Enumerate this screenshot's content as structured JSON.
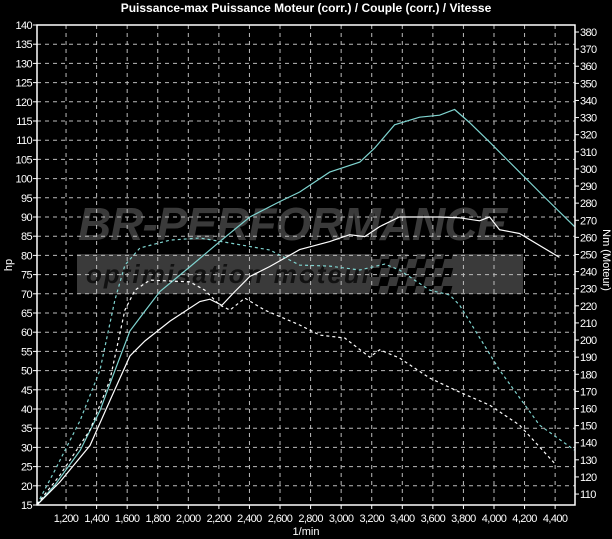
{
  "chart_data": {
    "type": "line",
    "title": "Puissance-max Puissance Moteur (corr.) / Couple (corr.) / Vitesse",
    "xlabel": "1/min",
    "ylabel": "hp",
    "ylabel_right": "Nm (Moteur)",
    "xlim": [
      1010,
      4530
    ],
    "ylim": [
      15,
      140
    ],
    "ylim_right": [
      103.6,
      384.1
    ],
    "grid": true,
    "x_ticks": [
      "1,200",
      "1,400",
      "1,600",
      "1,800",
      "2,000",
      "2,200",
      "2,400",
      "2,600",
      "2,800",
      "3,000",
      "3,200",
      "3,400",
      "3,600",
      "3,800",
      "4,000",
      "4,200",
      "4,400"
    ],
    "x_tick_values": [
      1200,
      1400,
      1600,
      1800,
      2000,
      2200,
      2400,
      2600,
      2800,
      3000,
      3200,
      3400,
      3600,
      3800,
      4000,
      4200,
      4400
    ],
    "y_ticks": [
      15,
      20,
      25,
      30,
      35,
      40,
      45,
      50,
      55,
      60,
      65,
      70,
      75,
      80,
      85,
      90,
      95,
      100,
      105,
      110,
      115,
      120,
      125,
      130,
      135,
      140
    ],
    "y_ticks_right": [
      110,
      120,
      130,
      140,
      150,
      160,
      170,
      180,
      190,
      200,
      210,
      220,
      230,
      240,
      250,
      260,
      270,
      280,
      290,
      300,
      310,
      320,
      330,
      340,
      350,
      360,
      370,
      380
    ],
    "series": [
      {
        "axis": "left",
        "color": "#7fd4d0",
        "dash": false,
        "x": [
          1010,
          1128,
          1292,
          1422,
          1520,
          1618,
          1716,
          1814,
          2010,
          2206,
          2402,
          2598,
          2729,
          2925,
          3122,
          3220,
          3350,
          3513,
          3644,
          3742,
          3840,
          3971,
          4167,
          4330,
          4527
        ],
        "y": [
          15,
          20.2,
          29.2,
          39.6,
          50,
          60.3,
          65.5,
          70.6,
          77,
          83.6,
          90,
          94,
          96.5,
          101.7,
          104.3,
          108,
          114,
          116,
          116.5,
          118,
          114.6,
          109.5,
          101.7,
          95.2,
          87.5
        ]
      },
      {
        "axis": "left",
        "color": "#ffffff",
        "dash": false,
        "x": [
          1010,
          1160,
          1357,
          1487,
          1618,
          1716,
          1880,
          2076,
          2141,
          2220,
          2305,
          2402,
          2533,
          2729,
          2925,
          3056,
          3154,
          3252,
          3382,
          3644,
          3775,
          3906,
          3971,
          4036,
          4167,
          4428
        ],
        "y": [
          15,
          21,
          30.5,
          42.2,
          53.8,
          57.7,
          62.9,
          68,
          68.6,
          67,
          70.6,
          74.5,
          77.1,
          81.5,
          83.6,
          85.4,
          84.9,
          87.5,
          90,
          90,
          89.8,
          89,
          90,
          86.7,
          85.7,
          79.5
        ]
      },
      {
        "axis": "right",
        "color": "#7fd4d0",
        "dash": true,
        "x": [
          1010,
          1128,
          1292,
          1422,
          1520,
          1585,
          1683,
          1880,
          2076,
          2272,
          2533,
          2729,
          2925,
          3122,
          3285,
          3382,
          3579,
          3710,
          3775,
          4036,
          4298,
          4527
        ],
        "y": [
          104,
          124,
          153,
          182.5,
          223.4,
          243.8,
          253.8,
          258.4,
          259.6,
          256.7,
          252.6,
          243.8,
          243.2,
          240.9,
          244.4,
          240.9,
          229.2,
          226.3,
          220.4,
          182.5,
          150.3,
          135.7
        ]
      },
      {
        "axis": "right",
        "color": "#ffffff",
        "dash": true,
        "x": [
          1010,
          1160,
          1357,
          1487,
          1585,
          1651,
          1749,
          2010,
          2108,
          2206,
          2272,
          2370,
          2500,
          2729,
          2860,
          3023,
          3187,
          3252,
          3382,
          3579,
          3775,
          3971,
          4167,
          4396
        ],
        "y": [
          104,
          121,
          147.4,
          176.6,
          217.5,
          229.2,
          235,
          234,
          229.2,
          220.4,
          217.5,
          224.5,
          217.5,
          208.8,
          202.9,
          201.2,
          190,
          194.3,
          189.5,
          177.8,
          169.6,
          162,
          150.3,
          128
        ]
      }
    ]
  },
  "watermark": {
    "brand": "BR-PERFORMANCE",
    "tagline": "optimisation moteur"
  }
}
